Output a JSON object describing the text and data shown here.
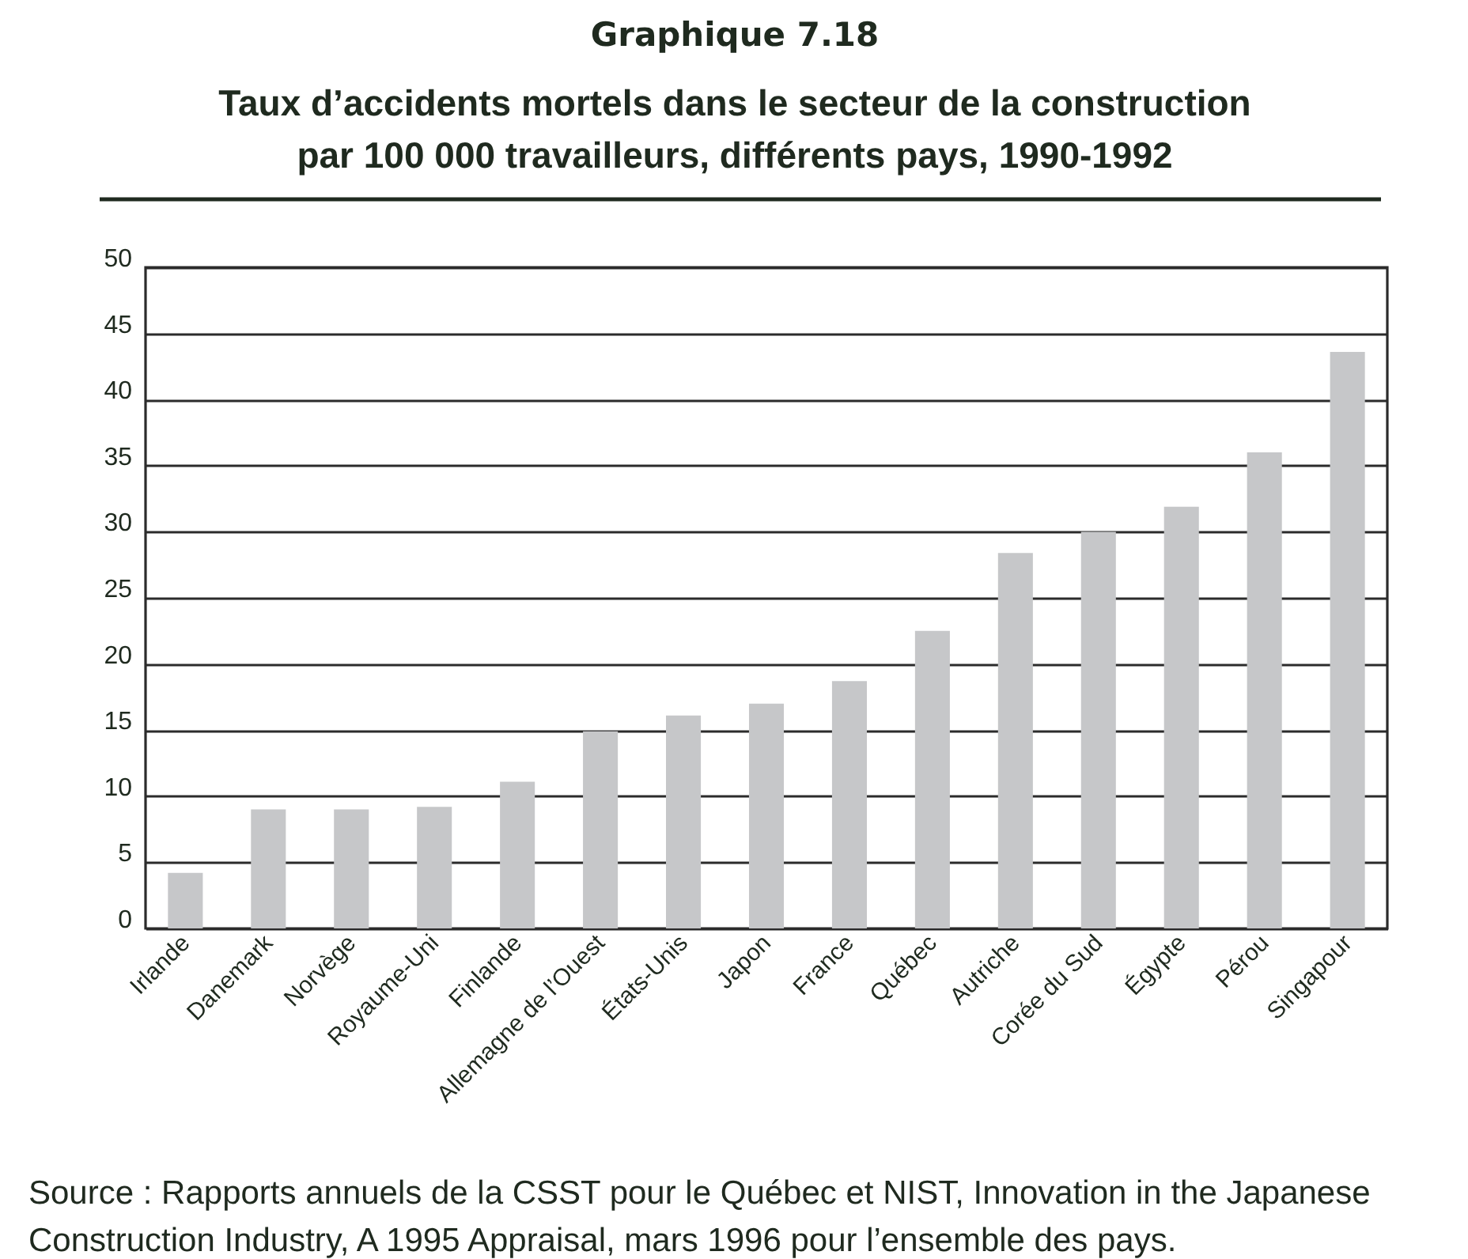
{
  "chart_data": {
    "type": "bar",
    "title": "Graphique 7.18",
    "subtitle": "Taux d’accidents mortels dans le secteur de la construction par 100 000 travailleurs, différents pays, 1990-1992",
    "categories": [
      "Irlande",
      "Danemark",
      "Norvège",
      "Royaume-Uni",
      "Finlande",
      "Allemagne de l’Ouest",
      "États-Unis",
      "Japon",
      "France",
      "Québec",
      "Autriche",
      "Corée du Sud",
      "Égypte",
      "Pérou",
      "Singapour"
    ],
    "values": [
      4.2,
      9.0,
      9.0,
      9.2,
      11.1,
      14.9,
      16.1,
      17.0,
      18.7,
      22.5,
      28.4,
      30.0,
      31.9,
      36.0,
      43.6
    ],
    "color": "#c6c7c9",
    "ylim": [
      0,
      50
    ],
    "yticks": [
      0,
      5,
      10,
      15,
      20,
      25,
      30,
      35,
      40,
      45,
      50
    ],
    "grid": "y",
    "annotations": [
      "Source : Rapports annuels de la CSST pour le Québec et NIST, Innovation in the Japanese Construction Industry, A 1995 Appraisal, mars 1996 pour l’ensemble des pays."
    ]
  }
}
